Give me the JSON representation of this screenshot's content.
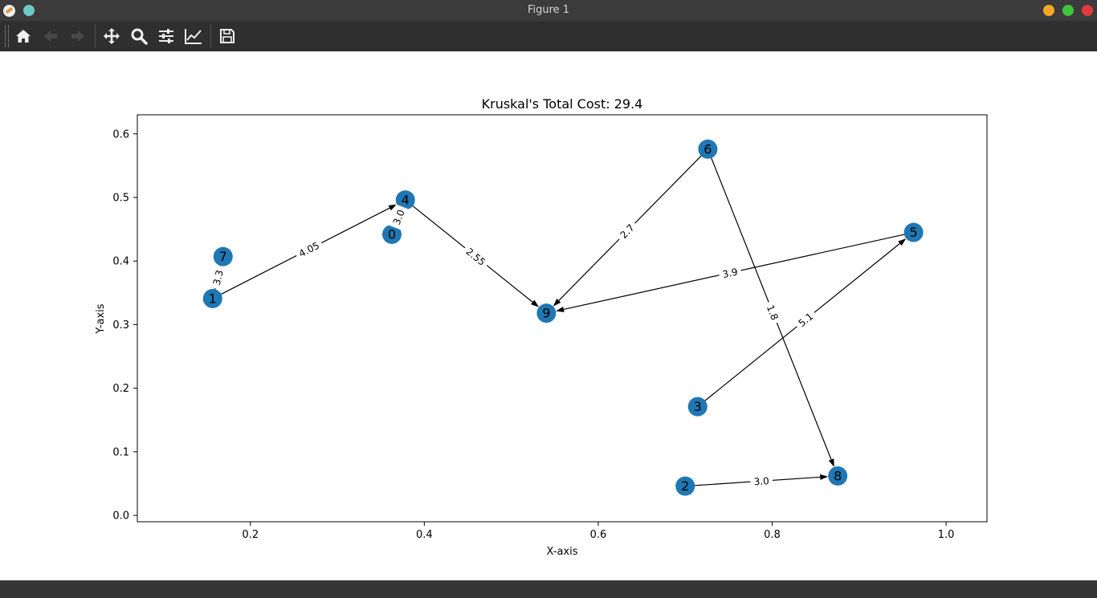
{
  "window": {
    "title": "Figure 1",
    "controls": [
      {
        "name": "minimize",
        "color": "#f5a623"
      },
      {
        "name": "maximize",
        "color": "#3fc53a"
      },
      {
        "name": "close",
        "color": "#e0393e"
      }
    ],
    "app_icon_secondary_color": "#6ec9c4"
  },
  "toolbar": {
    "buttons": [
      {
        "name": "home-icon",
        "label": "Home",
        "enabled": true
      },
      {
        "name": "back-icon",
        "label": "Back",
        "enabled": false
      },
      {
        "name": "forward-icon",
        "label": "Forward",
        "enabled": false
      },
      {
        "name": "pan-icon",
        "label": "Pan",
        "enabled": true
      },
      {
        "name": "zoom-icon",
        "label": "Zoom",
        "enabled": true
      },
      {
        "name": "configure-subplots-icon",
        "label": "Subplots",
        "enabled": true
      },
      {
        "name": "edit-axis-icon",
        "label": "Customize",
        "enabled": true
      },
      {
        "name": "save-icon",
        "label": "Save",
        "enabled": true
      }
    ]
  },
  "chart_data": {
    "type": "scatter",
    "title": "Kruskal's Total Cost: 29.4",
    "xlabel": "X-axis",
    "ylabel": "Y-axis",
    "xlim": [
      0.07,
      1.047
    ],
    "ylim": [
      -0.01,
      0.63
    ],
    "xticks": [
      "0.2",
      "0.4",
      "0.6",
      "0.8",
      "1.0"
    ],
    "yticks": [
      "0.0",
      "0.1",
      "0.2",
      "0.3",
      "0.4",
      "0.5",
      "0.6"
    ],
    "grid": false,
    "node_color": "#1f77b4",
    "nodes": [
      {
        "id": "0",
        "x": 0.3627,
        "y": 0.442
      },
      {
        "id": "1",
        "x": 0.1566,
        "y": 0.341
      },
      {
        "id": "2",
        "x": 0.7,
        "y": 0.046
      },
      {
        "id": "3",
        "x": 0.7143,
        "y": 0.171
      },
      {
        "id": "4",
        "x": 0.3782,
        "y": 0.496
      },
      {
        "id": "5",
        "x": 0.9626,
        "y": 0.445
      },
      {
        "id": "6",
        "x": 0.726,
        "y": 0.576
      },
      {
        "id": "7",
        "x": 0.1686,
        "y": 0.407
      },
      {
        "id": "8",
        "x": 0.8754,
        "y": 0.062
      },
      {
        "id": "9",
        "x": 0.5404,
        "y": 0.318
      }
    ],
    "edges": [
      {
        "from": "1",
        "to": "4",
        "label": "4.05"
      },
      {
        "from": "1",
        "to": "7",
        "label": "3.3"
      },
      {
        "from": "0",
        "to": "4",
        "label": "3.0"
      },
      {
        "from": "4",
        "to": "9",
        "label": "2.55"
      },
      {
        "from": "6",
        "to": "9",
        "label": "2.7"
      },
      {
        "from": "5",
        "to": "9",
        "label": "3.9"
      },
      {
        "from": "6",
        "to": "8",
        "label": "1.8"
      },
      {
        "from": "3",
        "to": "5",
        "label": "5.1"
      },
      {
        "from": "2",
        "to": "8",
        "label": "3.0"
      }
    ]
  }
}
